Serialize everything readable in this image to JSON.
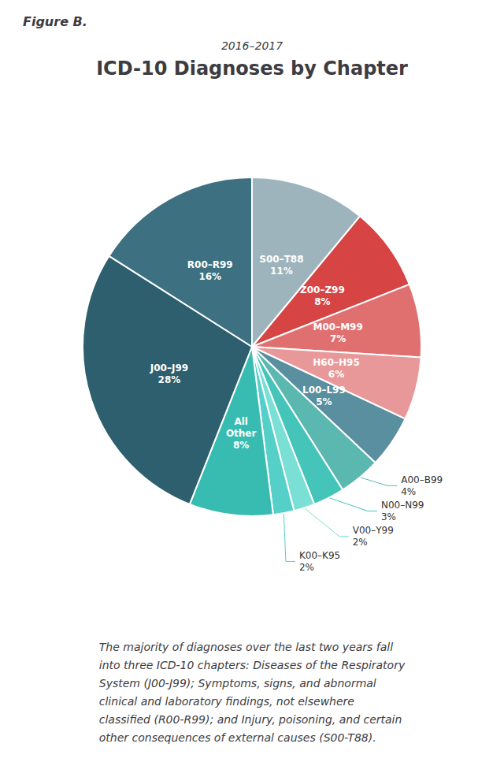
{
  "chart_data": {
    "type": "pie",
    "title": "ICD-10 Diagnoses by Chapter",
    "subtitle": "2016–2017",
    "annotations": [
      "Figure B.",
      "The majority of diagnoses over the last two years fall\ninto three ICD-10 chapters: Diseases of the Respiratory\nSystem (J00-J99); Symptoms, signs, and abnormal\nclinical and laboratory findings, not elsewhere\nclassified (R00-R99); and Injury, poisoning, and certain\nother consequences of external causes (S00-T88)."
    ],
    "categories": [
      "S00–T88",
      "Z00–Z99",
      "M00–M99",
      "H60–H95",
      "L00–L99",
      "A00–B99",
      "N00–N99",
      "V00–Y99",
      "K00–K95",
      "All\nOther",
      "J00–J99",
      "R00–R99"
    ],
    "values": [
      11,
      8,
      7,
      6,
      5,
      4,
      3,
      2,
      2,
      8,
      28,
      16
    ],
    "value_labels": [
      "11%",
      "8%",
      "7%",
      "6%",
      "5%",
      "4%",
      "3%",
      "2%",
      "2%",
      "8%",
      "28%",
      "16%"
    ],
    "colors": [
      "#9eb4bc",
      "#d64444",
      "#e07070",
      "#e89898",
      "#5a8fa0",
      "#5ab8b0",
      "#45c4ba",
      "#7adfd5",
      "#55d0c8",
      "#38bcb2",
      "#2d5f6e",
      "#3d7080"
    ],
    "data_labels": true
  }
}
